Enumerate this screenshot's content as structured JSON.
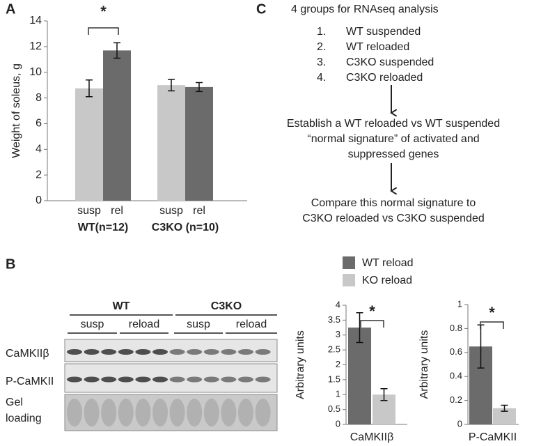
{
  "panel_labels": [
    "A",
    "B",
    "C"
  ],
  "chart_data": [
    {
      "type": "bar",
      "ylabel": "Weight of soleus, g",
      "categories": [
        "susp",
        "rel",
        "susp",
        "rel"
      ],
      "groups": [
        "WT(n=12)",
        "C3KO (n=10)"
      ],
      "values": [
        8.75,
        11.7,
        9.0,
        8.85
      ],
      "errors": [
        0.65,
        0.6,
        0.45,
        0.35
      ],
      "colors": [
        "#c8c8c8",
        "#6b6b6b",
        "#c8c8c8",
        "#6b6b6b"
      ],
      "ylim": [
        0,
        14
      ],
      "yticks": [
        0,
        2,
        4,
        6,
        8,
        10,
        12,
        14
      ],
      "annotation": "*"
    },
    {
      "type": "bar",
      "xlabel": "CaMKIIβ",
      "ylabel": "Arbitrary units",
      "series": [
        {
          "name": "WT reload",
          "color": "#6b6b6b",
          "values": [
            3.25
          ],
          "errors": [
            0.5
          ]
        },
        {
          "name": "KO reload",
          "color": "#c8c8c8",
          "values": [
            1.0
          ],
          "errors": [
            0.2
          ]
        }
      ],
      "ylim": [
        0,
        4
      ],
      "yticks": [
        0,
        0.5,
        1,
        1.5,
        2,
        2.5,
        3,
        3.5,
        4
      ],
      "annotation": "*"
    },
    {
      "type": "bar",
      "xlabel": "P-CaMKII",
      "ylabel": "Arbitrary units",
      "series": [
        {
          "color": "#6b6b6b",
          "values": [
            0.65
          ],
          "errors": [
            0.18
          ]
        },
        {
          "color": "#c8c8c8",
          "values": [
            0.135
          ],
          "errors": [
            0.025
          ]
        }
      ],
      "ylim": [
        0,
        1
      ],
      "yticks": [
        0,
        0.2,
        0.4,
        0.6,
        0.8,
        1
      ],
      "annotation": "*"
    }
  ],
  "blot": {
    "groups": [
      "WT",
      "C3KO"
    ],
    "subgroups": [
      "susp",
      "reload",
      "susp",
      "reload"
    ],
    "rows": [
      [
        "CaMKIIβ"
      ],
      [
        "P-CaMKII"
      ],
      [
        "Gel",
        "loading"
      ]
    ]
  },
  "rnaseq": {
    "title": "4 groups for RNAseq analysis",
    "groups": [
      {
        "number": "1.",
        "label": "WT suspended"
      },
      {
        "number": "2.",
        "label": "WT reloaded"
      },
      {
        "number": "3.",
        "label": "C3KO suspended"
      },
      {
        "number": "4.",
        "label": "C3KO reloaded"
      }
    ],
    "step1": [
      "Establish a WT reloaded vs WT suspended",
      "“normal signature” of activated and",
      "suppressed genes"
    ],
    "step2": [
      "Compare this normal signature to",
      "C3KO reloaded vs C3KO suspended"
    ]
  }
}
